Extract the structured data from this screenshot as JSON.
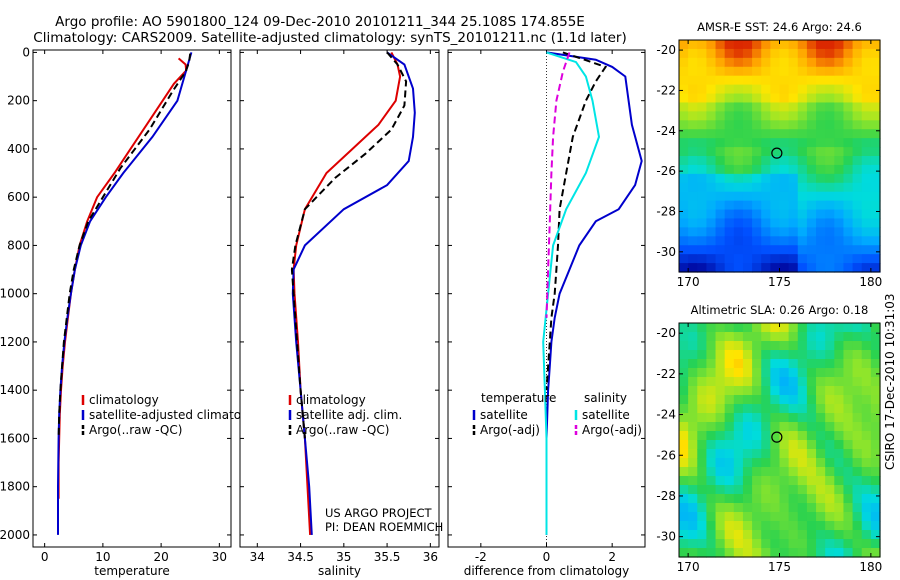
{
  "header": {
    "line1": "Argo profile: AO 5901800_124 09-Dec-2010 20101211_344 25.108S 174.855E",
    "line2": "Climatology: CARS2009. Satellite-adjusted climatology: synTS_20101211.nc (1.1d later)"
  },
  "credits": {
    "project": "US ARGO PROJECT",
    "pi": "PI: DEAN ROEMMICH"
  },
  "stamp": "CSIRO 17-Dec-2010 10:31:03",
  "colors": {
    "climatology": "#dd0000",
    "satellite": "#0000cc",
    "argo": "#000000",
    "satellite_salt": "#00e5e5",
    "argo_salt": "#dd00dd"
  },
  "chart_data": [
    {
      "type": "line",
      "panel": "temperature",
      "xlabel": "temperature",
      "xlim": [
        -2,
        32
      ],
      "ylim": [
        2050,
        -10
      ],
      "xticks": [
        0,
        10,
        20,
        30
      ],
      "yticks": [
        0,
        200,
        400,
        600,
        800,
        1000,
        1200,
        1400,
        1600,
        1800,
        2000
      ],
      "legend": [
        "climatology",
        "satellite-adjusted climatology",
        "Argo(..raw -QC)"
      ],
      "series": [
        {
          "name": "climatology",
          "style": "solid",
          "color": "#dd0000",
          "x": [
            23.0,
            24.2,
            24.3,
            22.2,
            17.5,
            12.0,
            9.0,
            7.3,
            6.0,
            5.2,
            4.5,
            4.0,
            3.5,
            3.1,
            2.8,
            2.6,
            2.5,
            2.4,
            2.4
          ],
          "y": [
            25,
            50,
            75,
            130,
            300,
            500,
            600,
            700,
            800,
            900,
            1000,
            1100,
            1200,
            1300,
            1400,
            1500,
            1600,
            1700,
            1850
          ]
        },
        {
          "name": "satellite-adjusted climatology",
          "style": "solid",
          "color": "#0000cc",
          "x": [
            25.2,
            24.6,
            24.0,
            22.8,
            18.5,
            13.5,
            10.5,
            7.8,
            6.2,
            5.2,
            4.5,
            3.9,
            3.4,
            3.0,
            2.7,
            2.5,
            2.4,
            2.3,
            2.3
          ],
          "y": [
            0,
            50,
            100,
            200,
            350,
            500,
            600,
            700,
            800,
            900,
            1000,
            1100,
            1200,
            1300,
            1400,
            1500,
            1600,
            1800,
            2000
          ]
        },
        {
          "name": "Argo(..raw -QC)",
          "style": "dashed",
          "color": "#000000",
          "x": [
            25.0,
            24.8,
            24.2,
            22.0,
            18.0,
            13.0,
            10.0,
            7.5,
            6.0,
            5.0,
            4.3,
            3.8,
            3.3,
            3.0,
            2.7,
            2.5,
            2.4
          ],
          "y": [
            5,
            40,
            80,
            160,
            320,
            480,
            600,
            700,
            800,
            900,
            1000,
            1100,
            1200,
            1300,
            1400,
            1500,
            1600
          ]
        }
      ]
    },
    {
      "type": "line",
      "panel": "salinity",
      "xlabel": "salinity",
      "xlim": [
        33.8,
        36.1
      ],
      "ylim": [
        2050,
        -10
      ],
      "xticks": [
        34,
        34.5,
        35,
        35.5,
        36
      ],
      "legend": [
        "climatology",
        "satellite adj. clim.",
        "Argo(..raw -QC)"
      ],
      "series": [
        {
          "name": "climatology",
          "style": "solid",
          "color": "#dd0000",
          "x": [
            35.55,
            35.62,
            35.65,
            35.6,
            35.4,
            35.1,
            34.8,
            34.55,
            34.45,
            34.42,
            34.43,
            34.47,
            34.5,
            34.55,
            34.58,
            34.61
          ],
          "y": [
            0,
            50,
            100,
            200,
            300,
            400,
            500,
            650,
            800,
            900,
            1000,
            1200,
            1400,
            1600,
            1800,
            2000
          ]
        },
        {
          "name": "satellite adj. clim.",
          "style": "solid",
          "color": "#0000cc",
          "x": [
            35.5,
            35.7,
            35.8,
            35.82,
            35.8,
            35.75,
            35.5,
            35.0,
            34.55,
            34.42,
            34.41,
            34.45,
            34.5,
            34.55,
            34.6,
            34.63
          ],
          "y": [
            0,
            50,
            150,
            250,
            350,
            450,
            550,
            650,
            800,
            900,
            1000,
            1200,
            1400,
            1600,
            1800,
            2000
          ]
        },
        {
          "name": "Argo(..raw -QC)",
          "style": "dashed",
          "color": "#000000",
          "x": [
            35.5,
            35.62,
            35.72,
            35.7,
            35.55,
            35.25,
            34.9,
            34.55,
            34.44,
            34.4,
            34.42,
            34.46,
            34.5,
            34.55
          ],
          "y": [
            0,
            50,
            120,
            220,
            320,
            420,
            520,
            650,
            800,
            900,
            1000,
            1200,
            1400,
            1600
          ]
        }
      ]
    },
    {
      "type": "line",
      "panel": "difference",
      "xlabel": "difference from climatology",
      "xlim": [
        -3,
        3
      ],
      "ylim": [
        2050,
        -10
      ],
      "xticks": [
        -2,
        0,
        2
      ],
      "legend_columns": [
        "temperature",
        "salinity"
      ],
      "legend": [
        "satellite",
        "Argo(-adj)",
        "satellite",
        "Argo(-adj)"
      ],
      "series": [
        {
          "name": "satellite",
          "group": "temperature",
          "style": "solid",
          "color": "#0000cc",
          "x": [
            0.0,
            1.5,
            2.0,
            2.4,
            2.5,
            2.6,
            2.9,
            2.7,
            2.2,
            1.5,
            1.0,
            0.7,
            0.4,
            0.25,
            0.15,
            0.1,
            0.05,
            0.0,
            0.0
          ],
          "y": [
            0,
            30,
            60,
            100,
            200,
            300,
            450,
            550,
            650,
            700,
            800,
            900,
            1000,
            1100,
            1200,
            1300,
            1400,
            1600,
            2000
          ]
        },
        {
          "name": "Argo(-adj)",
          "group": "temperature",
          "style": "dashed",
          "color": "#000000",
          "x": [
            0.5,
            1.8,
            1.5,
            1.2,
            0.8,
            0.6,
            0.4,
            0.35,
            0.3,
            0.25,
            0.15,
            0.1,
            0.05,
            0.0
          ],
          "y": [
            0,
            60,
            120,
            200,
            350,
            500,
            650,
            800,
            900,
            1000,
            1100,
            1200,
            1300,
            1400
          ]
        },
        {
          "name": "satellite",
          "group": "salinity",
          "style": "solid",
          "color": "#00e5e5",
          "x": [
            0.0,
            0.9,
            1.2,
            1.4,
            1.6,
            1.2,
            0.6,
            0.2,
            0.05,
            -0.1,
            -0.05,
            0.0,
            0.0
          ],
          "y": [
            0,
            40,
            100,
            200,
            350,
            500,
            650,
            800,
            1000,
            1200,
            1400,
            1600,
            2000
          ]
        },
        {
          "name": "Argo(-adj)",
          "group": "salinity",
          "style": "dashed",
          "color": "#dd00dd",
          "x": [
            0.7,
            0.5,
            0.3,
            0.2,
            0.15,
            0.1,
            0.05,
            0.0
          ],
          "y": [
            0,
            80,
            200,
            350,
            500,
            700,
            900,
            1100
          ]
        }
      ]
    },
    {
      "type": "heatmap",
      "panel": "sst_map",
      "title": "AMSR-E SST: 24.6  Argo: 24.6",
      "xlim": [
        169.5,
        180.5
      ],
      "ylim": [
        -31,
        -19.5
      ],
      "xticks": [
        170,
        175,
        180
      ],
      "yticks": [
        -20,
        -22,
        -24,
        -26,
        -28,
        -30
      ],
      "marker": {
        "lon": 174.855,
        "lat": -25.108
      }
    },
    {
      "type": "heatmap",
      "panel": "sla_map",
      "title": "Altimetric SLA: 0.26  Argo: 0.18",
      "xlim": [
        169.5,
        180.5
      ],
      "ylim": [
        -31,
        -19.5
      ],
      "xticks": [
        170,
        175,
        180
      ],
      "yticks": [
        -20,
        -22,
        -24,
        -26,
        -28,
        -30
      ],
      "marker": {
        "lon": 174.855,
        "lat": -25.108
      }
    }
  ]
}
